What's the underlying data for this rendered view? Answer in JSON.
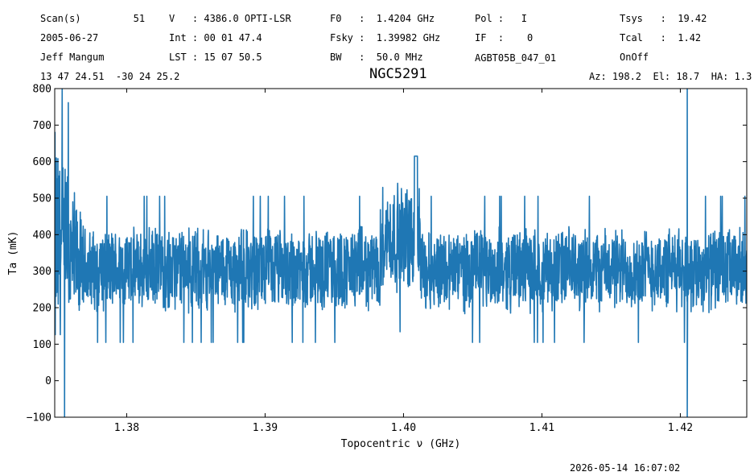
{
  "header": {
    "col1": [
      "Scan(s)         51",
      "2005-06-27",
      "Jeff Mangum",
      "13 47 24.51  -30 24 25.2"
    ],
    "col2": [
      "V   : 4386.0 OPTI-LSR",
      "Int : 00 01 47.4",
      "LST : 15 07 50.5"
    ],
    "col3": [
      "F0   :  1.4204 GHz",
      "Fsky :  1.39982 GHz",
      "BW   :  50.0 MHz"
    ],
    "col4": [
      "Pol :   I",
      "IF  :    0",
      "AGBT05B_047_01"
    ],
    "col5": [
      "Tsys   :  19.42",
      "Tcal   :  1.42",
      "OnOff"
    ],
    "azel": "Az: 198.2  El: 18.7  HA: 1.3"
  },
  "timestamp": "2026-05-14 16:07:02",
  "chart_data": {
    "type": "line",
    "title": "NGC5291",
    "xlabel": "Topocentric ν (GHz)",
    "ylabel": "Ta (mK)",
    "xlim": [
      1.3748,
      1.4248
    ],
    "ylim": [
      -100,
      800
    ],
    "xticks": [
      1.38,
      1.39,
      1.4,
      1.41,
      1.42
    ],
    "xtick_labels": [
      "1.38",
      "1.39",
      "1.40",
      "1.41",
      "1.42"
    ],
    "yticks": [
      -100,
      0,
      100,
      200,
      300,
      400,
      500,
      600,
      700,
      800
    ],
    "ytick_labels": [
      "−100",
      "0",
      "100",
      "200",
      "300",
      "400",
      "500",
      "600",
      "700",
      "800"
    ],
    "grid": false,
    "series": [
      {
        "color": "#1f77b4",
        "baseline_mK": 305,
        "noise_halfwidth_mK": 125,
        "features": [
          {
            "x_range": [
              1.3748,
              1.377
            ],
            "level_mK": 360,
            "halfwidth_mK": 380,
            "note": "band-edge rise"
          },
          {
            "x_range": [
              1.3983,
              1.4012
            ],
            "level_mK": 390,
            "halfwidth_mK": 160,
            "peak_mK": 615,
            "peak_x": 1.4009
          },
          {
            "x": 1.4205,
            "min_mK": -100,
            "max_mK": 800,
            "note": "RFI spike"
          }
        ]
      }
    ]
  }
}
